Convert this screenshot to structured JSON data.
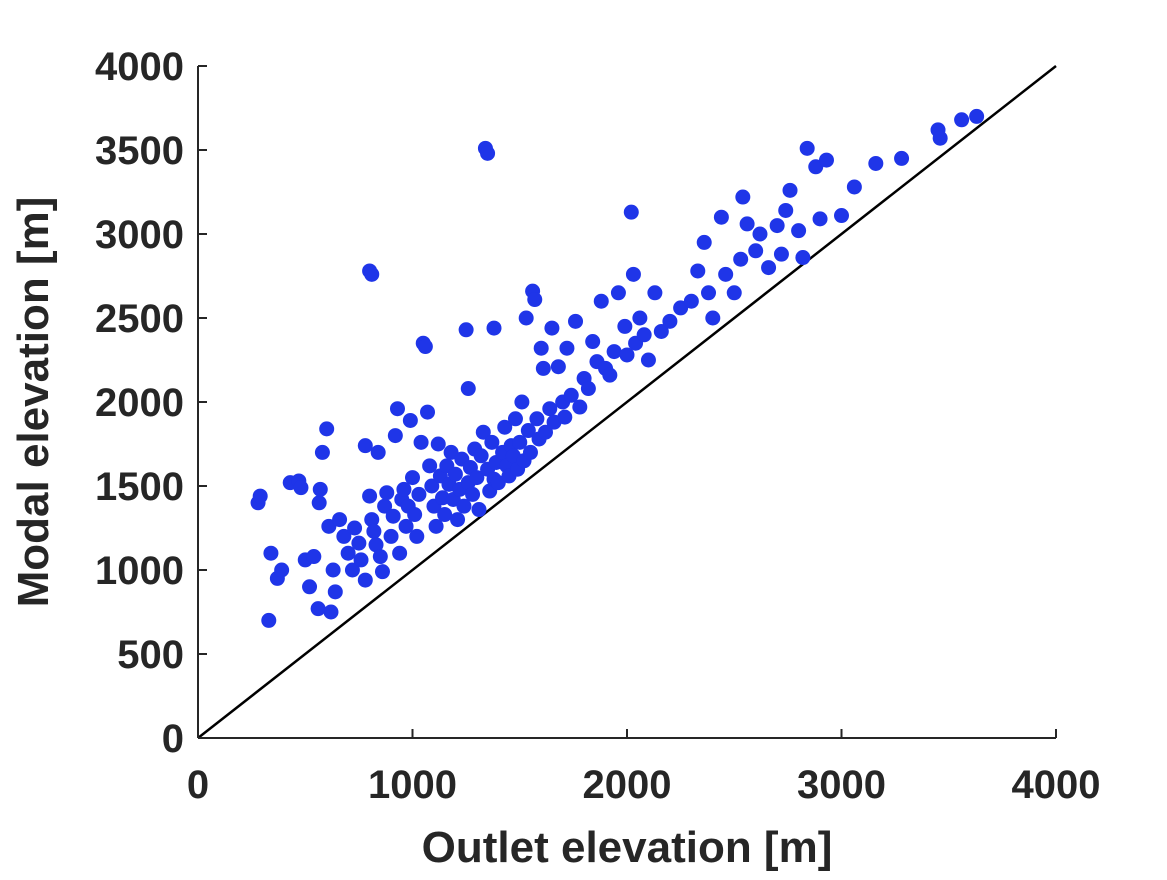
{
  "chart_data": {
    "type": "scatter",
    "title": "",
    "xlabel": "Outlet elevation [m]",
    "ylabel": "Modal elevation [m]",
    "xlim": [
      0,
      4000
    ],
    "ylim": [
      0,
      4000
    ],
    "xticks": [
      0,
      1000,
      2000,
      3000,
      4000
    ],
    "yticks": [
      0,
      500,
      1000,
      1500,
      2000,
      2500,
      3000,
      3500,
      4000
    ],
    "xtick_labels": [
      "0",
      "1000",
      "2000",
      "3000",
      "4000"
    ],
    "ytick_labels": [
      "0",
      "500",
      "1000",
      "1500",
      "2000",
      "2500",
      "3000",
      "3500",
      "4000"
    ],
    "grid": false,
    "reference_line": {
      "type": "1:1",
      "x": [
        0,
        4000
      ],
      "y": [
        0,
        4000
      ],
      "color": "#000000"
    },
    "series": [
      {
        "color": "#1f35e8",
        "points": [
          [
            280,
            1400
          ],
          [
            290,
            1440
          ],
          [
            330,
            700
          ],
          [
            340,
            1100
          ],
          [
            370,
            950
          ],
          [
            390,
            1000
          ],
          [
            430,
            1520
          ],
          [
            470,
            1530
          ],
          [
            480,
            1490
          ],
          [
            500,
            1060
          ],
          [
            520,
            900
          ],
          [
            540,
            1080
          ],
          [
            560,
            770
          ],
          [
            565,
            1400
          ],
          [
            570,
            1480
          ],
          [
            580,
            1700
          ],
          [
            600,
            1840
          ],
          [
            610,
            1260
          ],
          [
            620,
            750
          ],
          [
            630,
            1000
          ],
          [
            640,
            870
          ],
          [
            660,
            1300
          ],
          [
            680,
            1200
          ],
          [
            700,
            1100
          ],
          [
            720,
            1000
          ],
          [
            730,
            1250
          ],
          [
            750,
            1160
          ],
          [
            760,
            1060
          ],
          [
            780,
            1740
          ],
          [
            780,
            940
          ],
          [
            800,
            2780
          ],
          [
            810,
            2760
          ],
          [
            800,
            1440
          ],
          [
            810,
            1300
          ],
          [
            820,
            1230
          ],
          [
            830,
            1150
          ],
          [
            840,
            1700
          ],
          [
            850,
            1080
          ],
          [
            860,
            990
          ],
          [
            870,
            1380
          ],
          [
            880,
            1460
          ],
          [
            900,
            1200
          ],
          [
            910,
            1320
          ],
          [
            920,
            1800
          ],
          [
            930,
            1960
          ],
          [
            940,
            1100
          ],
          [
            950,
            1420
          ],
          [
            960,
            1480
          ],
          [
            970,
            1260
          ],
          [
            980,
            1380
          ],
          [
            990,
            1890
          ],
          [
            1000,
            1550
          ],
          [
            1010,
            1330
          ],
          [
            1020,
            1200
          ],
          [
            1030,
            1450
          ],
          [
            1040,
            1760
          ],
          [
            1050,
            2350
          ],
          [
            1060,
            2330
          ],
          [
            1070,
            1940
          ],
          [
            1080,
            1620
          ],
          [
            1090,
            1500
          ],
          [
            1100,
            1380
          ],
          [
            1110,
            1260
          ],
          [
            1120,
            1750
          ],
          [
            1130,
            1560
          ],
          [
            1140,
            1430
          ],
          [
            1150,
            1330
          ],
          [
            1160,
            1620
          ],
          [
            1170,
            1510
          ],
          [
            1180,
            1700
          ],
          [
            1190,
            1420
          ],
          [
            1200,
            1570
          ],
          [
            1210,
            1300
          ],
          [
            1220,
            1480
          ],
          [
            1230,
            1660
          ],
          [
            1240,
            1380
          ],
          [
            1250,
            2430
          ],
          [
            1260,
            2080
          ],
          [
            1260,
            1520
          ],
          [
            1270,
            1610
          ],
          [
            1280,
            1450
          ],
          [
            1290,
            1720
          ],
          [
            1300,
            1550
          ],
          [
            1310,
            1360
          ],
          [
            1320,
            1680
          ],
          [
            1330,
            1820
          ],
          [
            1340,
            3510
          ],
          [
            1350,
            3480
          ],
          [
            1350,
            1600
          ],
          [
            1360,
            1470
          ],
          [
            1370,
            1760
          ],
          [
            1380,
            2440
          ],
          [
            1380,
            1540
          ],
          [
            1390,
            1640
          ],
          [
            1400,
            1520
          ],
          [
            1420,
            1700
          ],
          [
            1430,
            1850
          ],
          [
            1440,
            1620
          ],
          [
            1450,
            1560
          ],
          [
            1460,
            1740
          ],
          [
            1470,
            1680
          ],
          [
            1480,
            1900
          ],
          [
            1490,
            1600
          ],
          [
            1500,
            1760
          ],
          [
            1510,
            2000
          ],
          [
            1520,
            1650
          ],
          [
            1530,
            2500
          ],
          [
            1540,
            1830
          ],
          [
            1550,
            1700
          ],
          [
            1560,
            2660
          ],
          [
            1570,
            2610
          ],
          [
            1580,
            1900
          ],
          [
            1590,
            1780
          ],
          [
            1600,
            2320
          ],
          [
            1610,
            2200
          ],
          [
            1620,
            1820
          ],
          [
            1640,
            1960
          ],
          [
            1650,
            2440
          ],
          [
            1660,
            1880
          ],
          [
            1680,
            2210
          ],
          [
            1700,
            2000
          ],
          [
            1710,
            1910
          ],
          [
            1720,
            2320
          ],
          [
            1740,
            2040
          ],
          [
            1760,
            2480
          ],
          [
            1780,
            1970
          ],
          [
            1800,
            2140
          ],
          [
            1820,
            2080
          ],
          [
            1840,
            2360
          ],
          [
            1860,
            2240
          ],
          [
            1880,
            2600
          ],
          [
            1900,
            2200
          ],
          [
            1920,
            2160
          ],
          [
            1940,
            2300
          ],
          [
            1960,
            2650
          ],
          [
            1990,
            2450
          ],
          [
            2000,
            2280
          ],
          [
            2020,
            3130
          ],
          [
            2030,
            2760
          ],
          [
            2040,
            2350
          ],
          [
            2060,
            2500
          ],
          [
            2080,
            2400
          ],
          [
            2100,
            2250
          ],
          [
            2130,
            2650
          ],
          [
            2160,
            2420
          ],
          [
            2200,
            2480
          ],
          [
            2250,
            2560
          ],
          [
            2300,
            2600
          ],
          [
            2330,
            2780
          ],
          [
            2360,
            2950
          ],
          [
            2380,
            2650
          ],
          [
            2400,
            2500
          ],
          [
            2440,
            3100
          ],
          [
            2460,
            2760
          ],
          [
            2500,
            2650
          ],
          [
            2530,
            2850
          ],
          [
            2540,
            3220
          ],
          [
            2560,
            3060
          ],
          [
            2600,
            2900
          ],
          [
            2620,
            3000
          ],
          [
            2660,
            2800
          ],
          [
            2700,
            3050
          ],
          [
            2720,
            2880
          ],
          [
            2740,
            3140
          ],
          [
            2760,
            3260
          ],
          [
            2800,
            3020
          ],
          [
            2820,
            2860
          ],
          [
            2840,
            3510
          ],
          [
            2880,
            3400
          ],
          [
            2900,
            3090
          ],
          [
            2930,
            3440
          ],
          [
            3000,
            3110
          ],
          [
            3060,
            3280
          ],
          [
            3160,
            3420
          ],
          [
            3280,
            3450
          ],
          [
            3450,
            3620
          ],
          [
            3460,
            3570
          ],
          [
            3560,
            3680
          ],
          [
            3630,
            3700
          ]
        ]
      }
    ]
  }
}
